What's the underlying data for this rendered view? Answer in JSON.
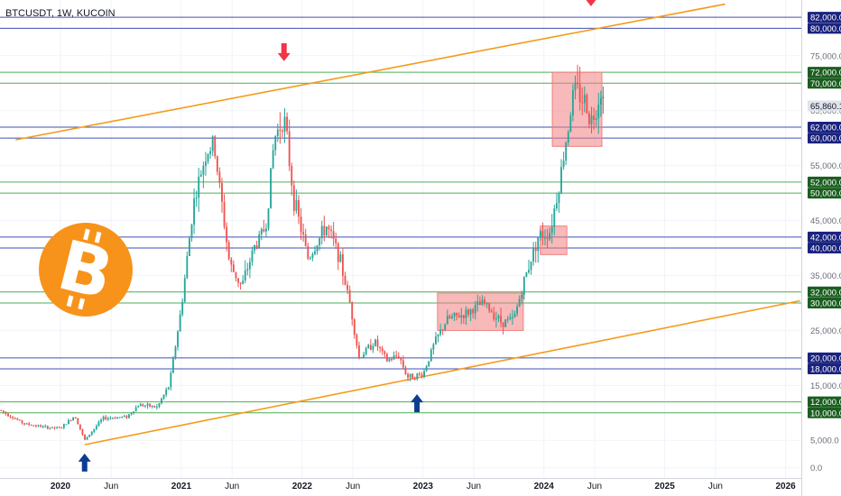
{
  "symbol_label": "BTCUSDT, 1W, KUCOIN",
  "current_price_label": "65,860.1",
  "colors": {
    "up": "#26a69a",
    "down": "#ef5350",
    "green_level": "#4caf50",
    "blue_level": "#3f51b5",
    "green_tag": "#1b5e20",
    "blue_tag": "#1a237e",
    "trend": "#f59a1b",
    "zone": "#f08080",
    "arrow_red": "#f23645",
    "arrow_blue": "#0d3d91",
    "btc_orange": "#f7931a"
  },
  "icons": [
    "bitcoin-logo-icon",
    "arrow-down-icon",
    "arrow-up-icon"
  ],
  "chart_data": {
    "type": "candlestick",
    "ylim": [
      0,
      84500
    ],
    "x_tick_labels": [
      {
        "label": "2020",
        "t": 2020.0,
        "bold": true
      },
      {
        "label": "Jun",
        "t": 2020.42
      },
      {
        "label": "2021",
        "t": 2021.0,
        "bold": true
      },
      {
        "label": "Jun",
        "t": 2021.42
      },
      {
        "label": "2022",
        "t": 2022.0,
        "bold": true
      },
      {
        "label": "Jun",
        "t": 2022.42
      },
      {
        "label": "2023",
        "t": 2023.0,
        "bold": true
      },
      {
        "label": "Jun",
        "t": 2023.42
      },
      {
        "label": "2024",
        "t": 2024.0,
        "bold": true
      },
      {
        "label": "Jun",
        "t": 2024.42
      },
      {
        "label": "2025",
        "t": 2025.0,
        "bold": true
      },
      {
        "label": "Jun",
        "t": 2025.42
      },
      {
        "label": "2026",
        "t": 2026.0,
        "bold": true
      }
    ],
    "y_tick_labels": [
      {
        "label": "0.0",
        "v": 0
      },
      {
        "label": "5,000.0",
        "v": 5000
      },
      {
        "label": "15,000.0",
        "v": 15000
      },
      {
        "label": "25,000.0",
        "v": 25000
      },
      {
        "label": "35,000.0",
        "v": 35000
      },
      {
        "label": "45,000.0",
        "v": 45000
      },
      {
        "label": "55,000.0",
        "v": 55000
      },
      {
        "label": "65,000.0",
        "v": 65000
      },
      {
        "label": "75,000.0",
        "v": 75000
      }
    ],
    "levels": [
      {
        "label": "82,000.0",
        "v": 82000,
        "kind": "blue"
      },
      {
        "label": "80,000.0",
        "v": 80000,
        "kind": "blue"
      },
      {
        "label": "72,000.0",
        "v": 72000,
        "kind": "green"
      },
      {
        "label": "70,000.0",
        "v": 70000,
        "kind": "green"
      },
      {
        "label": "62,000.0",
        "v": 62000,
        "kind": "blue"
      },
      {
        "label": "60,000.0",
        "v": 60000,
        "kind": "blue"
      },
      {
        "label": "52,000.0",
        "v": 52000,
        "kind": "green"
      },
      {
        "label": "50,000.0",
        "v": 50000,
        "kind": "green"
      },
      {
        "label": "42,000.0",
        "v": 42000,
        "kind": "blue"
      },
      {
        "label": "40,000.0",
        "v": 40000,
        "kind": "blue"
      },
      {
        "label": "32,000.0",
        "v": 32000,
        "kind": "green"
      },
      {
        "label": "30,000.0",
        "v": 30000,
        "kind": "green"
      },
      {
        "label": "20,000.0",
        "v": 20000,
        "kind": "blue"
      },
      {
        "label": "18,000.0",
        "v": 18000,
        "kind": "blue"
      },
      {
        "label": "12,000.0",
        "v": 12000,
        "kind": "green"
      },
      {
        "label": "10,000.0",
        "v": 10000,
        "kind": "green"
      }
    ],
    "current_price": 65860.1,
    "trendlines": [
      {
        "name": "upper",
        "t1": 2019.63,
        "v1": 59700,
        "t2": 2025.5,
        "v2": 84400
      },
      {
        "name": "lower",
        "t1": 2020.2,
        "v1": 4200,
        "t2": 2026.12,
        "v2": 30400
      }
    ],
    "zones": [
      {
        "t1": 2023.12,
        "t2": 2023.83,
        "v1": 25000,
        "v2": 31800
      },
      {
        "t1": 2023.97,
        "t2": 2024.19,
        "v1": 38800,
        "v2": 44000
      },
      {
        "t1": 2024.07,
        "t2": 2024.48,
        "v1": 58500,
        "v2": 72000
      }
    ],
    "arrows": [
      {
        "dir": "down",
        "t": 2021.85,
        "v": 74000
      },
      {
        "dir": "down",
        "t": 2024.39,
        "v": 84000
      },
      {
        "dir": "up",
        "t": 2020.2,
        "v": 2600
      },
      {
        "dir": "up",
        "t": 2022.95,
        "v": 13400
      }
    ],
    "anchors": [
      [
        2019.5,
        10500
      ],
      [
        2019.7,
        8000
      ],
      [
        2019.9,
        7300
      ],
      [
        2020.0,
        7200
      ],
      [
        2020.12,
        9500
      ],
      [
        2020.2,
        5000
      ],
      [
        2020.35,
        9000
      ],
      [
        2020.55,
        9300
      ],
      [
        2020.65,
        11500
      ],
      [
        2020.8,
        11000
      ],
      [
        2020.9,
        15000
      ],
      [
        2021.0,
        29000
      ],
      [
        2021.1,
        48000
      ],
      [
        2021.2,
        57000
      ],
      [
        2021.27,
        59000
      ],
      [
        2021.4,
        37000
      ],
      [
        2021.5,
        33000
      ],
      [
        2021.6,
        40000
      ],
      [
        2021.7,
        44000
      ],
      [
        2021.77,
        60000
      ],
      [
        2021.85,
        64000
      ],
      [
        2021.93,
        49000
      ],
      [
        2022.05,
        38000
      ],
      [
        2022.2,
        44000
      ],
      [
        2022.3,
        39000
      ],
      [
        2022.4,
        29500
      ],
      [
        2022.47,
        20000
      ],
      [
        2022.6,
        23000
      ],
      [
        2022.7,
        19500
      ],
      [
        2022.8,
        20500
      ],
      [
        2022.87,
        16500
      ],
      [
        2023.0,
        17000
      ],
      [
        2023.1,
        23000
      ],
      [
        2023.2,
        27000
      ],
      [
        2023.35,
        28000
      ],
      [
        2023.5,
        30000
      ],
      [
        2023.65,
        26500
      ],
      [
        2023.75,
        27000
      ],
      [
        2023.85,
        35000
      ],
      [
        2023.95,
        42000
      ],
      [
        2024.05,
        43000
      ],
      [
        2024.13,
        52000
      ],
      [
        2024.2,
        62000
      ],
      [
        2024.25,
        69000
      ],
      [
        2024.33,
        67000
      ],
      [
        2024.4,
        63000
      ],
      [
        2024.47,
        69000
      ],
      [
        2024.5,
        65860
      ]
    ]
  }
}
